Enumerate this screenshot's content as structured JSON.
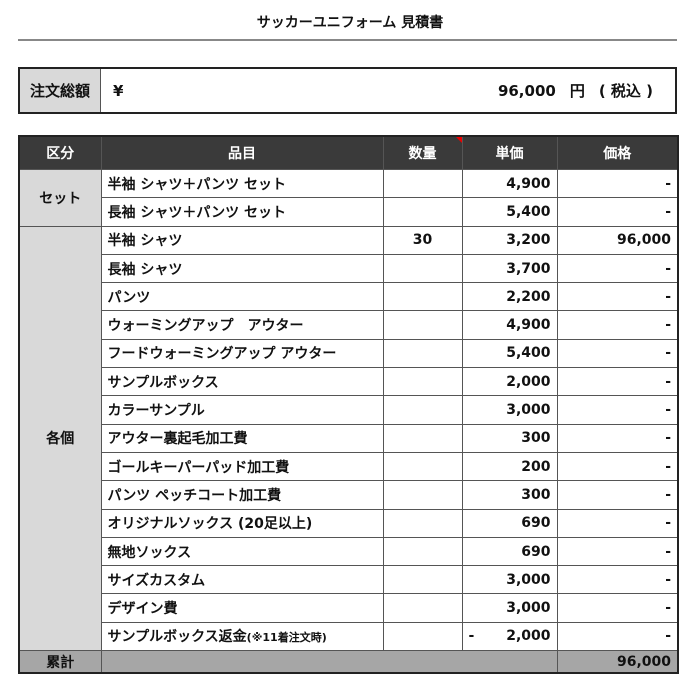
{
  "title": "サッカーユニフォーム 見積書",
  "total": {
    "label": "注文総額",
    "currency": "¥",
    "amount": "96,000",
    "unit": "円",
    "tax": "( 税込 )"
  },
  "headers": [
    "区分",
    "品目",
    "数量",
    "単価",
    "価格"
  ],
  "categories": {
    "set": "セット",
    "individual": "各個"
  },
  "set_rows": [
    {
      "item": "半袖 シャツ＋パンツ セット",
      "qty": "",
      "price": "4,900",
      "total": "-"
    },
    {
      "item": "長袖 シャツ＋パンツ セット",
      "qty": "",
      "price": "5,400",
      "total": "-"
    }
  ],
  "item_rows": [
    {
      "item": "半袖 シャツ",
      "qty": "30",
      "price": "3,200",
      "total": "96,000"
    },
    {
      "item": "長袖 シャツ",
      "qty": "",
      "price": "3,700",
      "total": "-"
    },
    {
      "item": "パンツ",
      "qty": "",
      "price": "2,200",
      "total": "-"
    },
    {
      "item": "ウォーミングアップ　アウター",
      "qty": "",
      "price": "4,900",
      "total": "-"
    },
    {
      "item": "フードウォーミングアップ アウター",
      "qty": "",
      "price": "5,400",
      "total": "-"
    },
    {
      "item": "サンプルボックス",
      "qty": "",
      "price": "2,000",
      "total": "-"
    },
    {
      "item": "カラーサンプル",
      "qty": "",
      "price": "3,000",
      "total": "-"
    },
    {
      "item": "アウター裏起毛加工費",
      "qty": "",
      "price": "300",
      "total": "-"
    },
    {
      "item": "ゴールキーパーパッド加工費",
      "qty": "",
      "price": "200",
      "total": "-"
    },
    {
      "item": "パンツ ペッチコート加工費",
      "qty": "",
      "price": "300",
      "total": "-"
    },
    {
      "item": "オリジナルソックス (20足以上)",
      "qty": "",
      "price": "690",
      "total": "-"
    },
    {
      "item": "無地ソックス",
      "qty": "",
      "price": "690",
      "total": "-"
    },
    {
      "item": "サイズカスタム",
      "qty": "",
      "price": "3,000",
      "total": "-"
    },
    {
      "item": "デザイン費",
      "qty": "",
      "price": "3,000",
      "total": "-"
    }
  ],
  "refund_row": {
    "item": "サンプルボックス返金",
    "note": "(※11着注文時)",
    "qty": "",
    "sign": "-",
    "price": "2,000",
    "total": "-"
  },
  "sum": {
    "label": "累計",
    "total": "96,000"
  }
}
